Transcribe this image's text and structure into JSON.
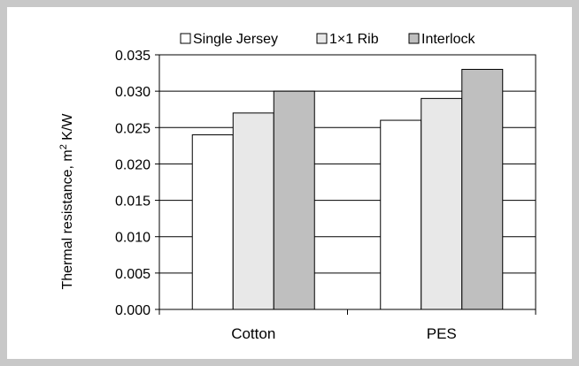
{
  "chart_data": {
    "type": "bar",
    "title": "",
    "xlabel": "",
    "ylabel": "Thermal resistance, m",
    "ylabel_sup": "2",
    "ylabel_unit": " K/W",
    "categories": [
      "Cotton",
      "PES"
    ],
    "series": [
      {
        "name": "Single Jersey",
        "values": [
          0.024,
          0.026
        ],
        "color": "#ffffff"
      },
      {
        "name": "1×1 Rib",
        "values": [
          0.027,
          0.029
        ],
        "color": "#e8e8e8"
      },
      {
        "name": "Interlock",
        "values": [
          0.03,
          0.033
        ],
        "color": "#bfbfbf"
      }
    ],
    "ylim": [
      0,
      0.035
    ],
    "yticks": [
      "0.000",
      "0.005",
      "0.010",
      "0.015",
      "0.020",
      "0.025",
      "0.030",
      "0.035"
    ],
    "grid": true,
    "legend_position": "top"
  }
}
